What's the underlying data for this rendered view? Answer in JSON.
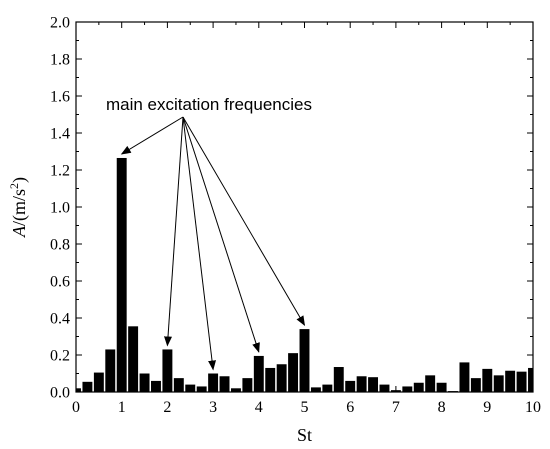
{
  "chart_data": {
    "type": "bar",
    "xlabel": "St",
    "ylabel_main": "A",
    "ylabel_unit": "/(m/s",
    "ylabel_sup": "2",
    "ylabel_close": ")",
    "xlim": [
      0,
      10
    ],
    "ylim": [
      0,
      2.0
    ],
    "x_ticks": [
      "0",
      "1",
      "2",
      "3",
      "4",
      "5",
      "6",
      "7",
      "8",
      "9",
      "10"
    ],
    "y_ticks": [
      "0.0",
      "0.2",
      "0.4",
      "0.6",
      "0.8",
      "1.0",
      "1.2",
      "1.4",
      "1.6",
      "1.8",
      "2.0"
    ],
    "grid": false,
    "bar_color": "#000000",
    "x": [
      0.0,
      0.25,
      0.5,
      0.75,
      1.0,
      1.25,
      1.5,
      1.75,
      2.0,
      2.25,
      2.5,
      2.75,
      3.0,
      3.25,
      3.5,
      3.75,
      4.0,
      4.25,
      4.5,
      4.75,
      5.0,
      5.25,
      5.5,
      5.75,
      6.0,
      6.25,
      6.5,
      6.75,
      7.0,
      7.25,
      7.5,
      7.75,
      8.0,
      8.25,
      8.5,
      8.75,
      9.0,
      9.25,
      9.5,
      9.75,
      10.0
    ],
    "values": [
      0.02,
      0.055,
      0.105,
      0.23,
      1.265,
      0.355,
      0.1,
      0.06,
      0.23,
      0.075,
      0.04,
      0.03,
      0.1,
      0.085,
      0.02,
      0.075,
      0.195,
      0.13,
      0.15,
      0.21,
      0.34,
      0.025,
      0.04,
      0.135,
      0.06,
      0.085,
      0.08,
      0.04,
      0.01,
      0.03,
      0.05,
      0.09,
      0.05,
      0.005,
      0.16,
      0.075,
      0.125,
      0.09,
      0.115,
      0.11,
      0.13
    ],
    "annotation": {
      "text": "main  excitation frequencies",
      "targets": [
        {
          "x": 1.0,
          "y": 1.265
        },
        {
          "x": 2.0,
          "y": 0.23
        },
        {
          "x": 3.0,
          "y": 0.1
        },
        {
          "x": 4.0,
          "y": 0.195
        },
        {
          "x": 5.0,
          "y": 0.34
        }
      ]
    }
  }
}
